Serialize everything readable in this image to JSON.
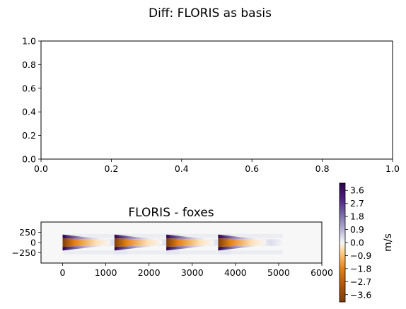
{
  "figure": {
    "suptitle": "Diff: FLORIS as basis"
  },
  "chart_data": [
    {
      "type": "line",
      "title": "",
      "xlabel": "",
      "ylabel": "",
      "xlim": [
        0,
        1
      ],
      "ylim": [
        0,
        1
      ],
      "xticks": [
        "0.0",
        "0.2",
        "0.4",
        "0.6",
        "0.8",
        "1.0"
      ],
      "yticks": [
        "0.0",
        "0.2",
        "0.4",
        "0.6",
        "0.8",
        "1.0"
      ],
      "series": []
    },
    {
      "type": "heatmap",
      "title": "FLORIS - foxes",
      "xlim": [
        -500,
        6000
      ],
      "ylim": [
        -500,
        500
      ],
      "xticks": [
        "0",
        "1000",
        "2000",
        "3000",
        "4000",
        "5000",
        "6000"
      ],
      "yticks": [
        "250",
        "0",
        "−250"
      ],
      "turbines_x": [
        0,
        1200,
        2400,
        3600
      ],
      "wake_length": 1100,
      "colormap": "PuOr",
      "colorbar": {
        "label": "m/s",
        "range": [
          -4.1,
          4.1
        ],
        "ticks": [
          "3.6",
          "2.7",
          "1.8",
          "0.9",
          "0.0",
          "−0.9",
          "−1.8",
          "−2.7",
          "−3.6"
        ],
        "tick_values": [
          3.6,
          2.7,
          1.8,
          0.9,
          0.0,
          -0.9,
          -1.8,
          -2.7,
          -3.6
        ]
      }
    }
  ],
  "colors": {
    "neg_dark": "#7f3b08",
    "neg_mid": "#e08214",
    "neg_light": "#fee0b6",
    "neutral": "#f7f7f7",
    "pos_light": "#d8daeb",
    "pos_mid": "#8073ac",
    "pos_dark": "#2d004b"
  }
}
